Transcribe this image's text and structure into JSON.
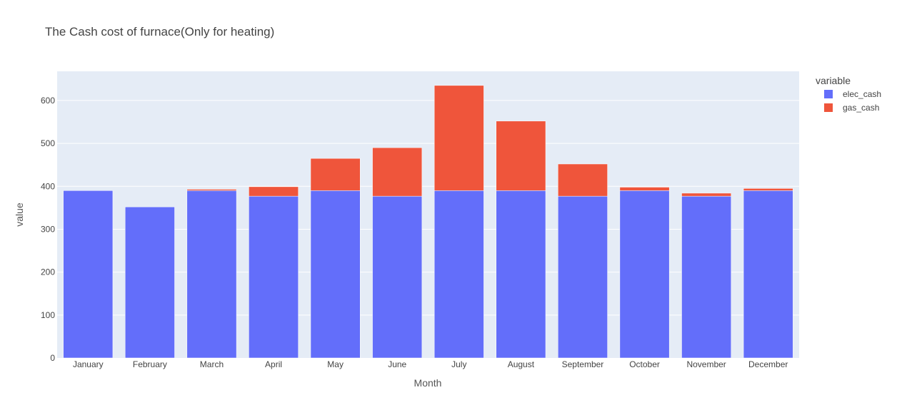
{
  "chart_data": {
    "type": "bar",
    "barmode": "stack",
    "title": "The Cash cost of furnace(Only for heating)",
    "xlabel": "Month",
    "ylabel": "value",
    "ylim": [
      0,
      668
    ],
    "yticks": [
      0,
      100,
      200,
      300,
      400,
      500,
      600
    ],
    "categories": [
      "January",
      "February",
      "March",
      "April",
      "May",
      "June",
      "July",
      "August",
      "September",
      "October",
      "November",
      "December"
    ],
    "legend_title": "variable",
    "legend_position": "top-right",
    "series": [
      {
        "name": "elec_cash",
        "color": "#636efa",
        "values": [
          390,
          352,
          390,
          377,
          390,
          377,
          390,
          390,
          377,
          390,
          377,
          390
        ]
      },
      {
        "name": "gas_cash",
        "color": "#ef553b",
        "values": [
          0,
          0,
          3,
          22,
          75,
          113,
          245,
          162,
          75,
          8,
          7,
          5
        ]
      }
    ],
    "plot_background": "#e5ecf6",
    "grid_color": "#ffffff"
  }
}
